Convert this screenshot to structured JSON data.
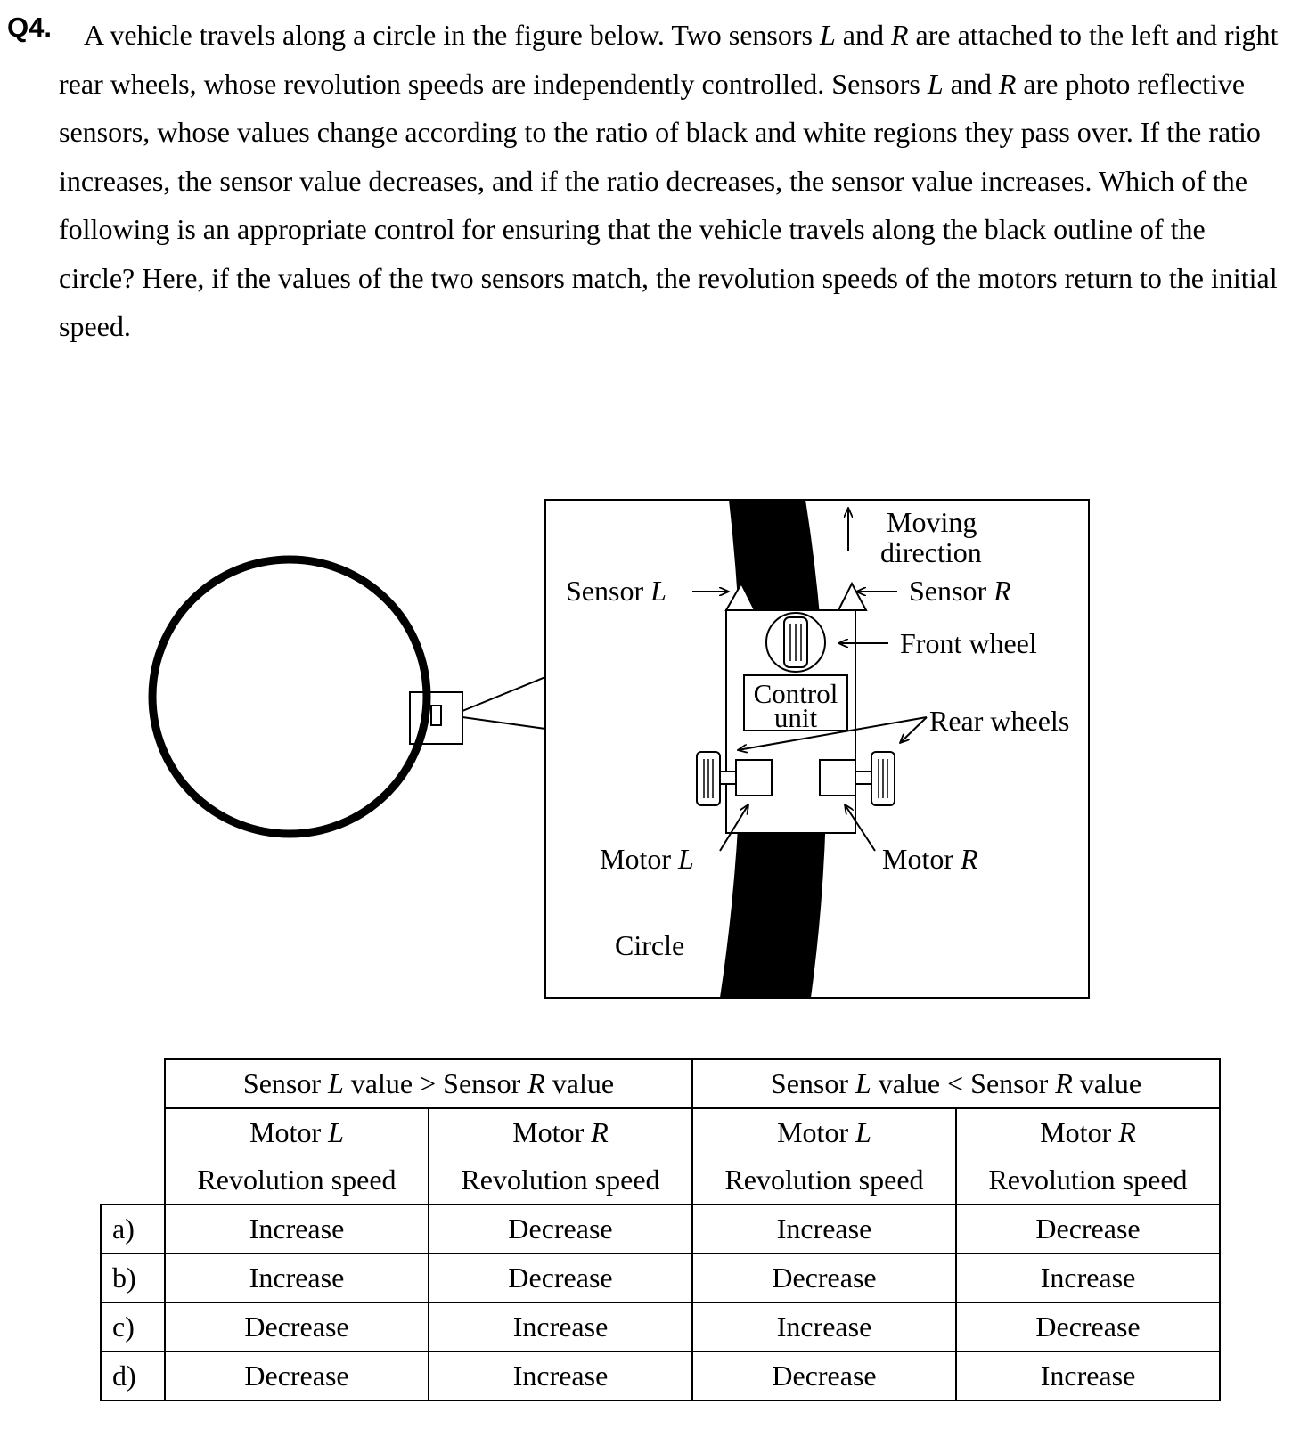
{
  "question": {
    "label": "Q4.",
    "sentence1_a": "A vehicle travels along a circle in the figure below. Two sensors ",
    "var_L": "L",
    "and": " and ",
    "var_R": "R",
    "sentence1_b": " are attached to the left and right rear wheels, whose revolution speeds are independently controlled. Sensors ",
    "sentence2_b": " are photo reflective sensors, whose values change according to the ratio of black and white regions they pass over. If the ratio increases, the sensor value decreases, and if the ratio decreases, the sensor value increases. Which of the following is an appropriate control for ensuring that the vehicle travels along the black outline of the circle? Here, if the values of the two sensors match, the revolution speeds of the motors return to the initial speed."
  },
  "figure": {
    "sensor_l_label": "Sensor ",
    "sensor_l_var": "L",
    "sensor_r_label": "Sensor ",
    "sensor_r_var": "R",
    "moving_line1": "Moving",
    "moving_line2": "direction",
    "front_wheel": "Front wheel",
    "control_line1": "Control",
    "control_line2": "unit",
    "rear_wheels": "Rear wheels",
    "motor_l_label": "Motor ",
    "motor_l_var": "L",
    "motor_r_label": "Motor ",
    "motor_r_var": "R",
    "circle_label": "Circle"
  },
  "table": {
    "group1": {
      "pre": "Sensor ",
      "v1": "L",
      "mid": " value > Sensor ",
      "v2": "R",
      "post": " value"
    },
    "group2": {
      "pre": "Sensor ",
      "v1": "L",
      "mid": " value < Sensor ",
      "v2": "R",
      "post": " value"
    },
    "subheaders": [
      {
        "motor": "Motor ",
        "var": "L",
        "line2": "Revolution speed"
      },
      {
        "motor": "Motor ",
        "var": "R",
        "line2": "Revolution speed"
      },
      {
        "motor": "Motor ",
        "var": "L",
        "line2": "Revolution speed"
      },
      {
        "motor": "Motor ",
        "var": "R",
        "line2": "Revolution speed"
      }
    ],
    "rows": [
      {
        "option": "a)",
        "cells": [
          "Increase",
          "Decrease",
          "Increase",
          "Decrease"
        ]
      },
      {
        "option": "b)",
        "cells": [
          "Increase",
          "Decrease",
          "Decrease",
          "Increase"
        ]
      },
      {
        "option": "c)",
        "cells": [
          "Decrease",
          "Increase",
          "Increase",
          "Decrease"
        ]
      },
      {
        "option": "d)",
        "cells": [
          "Decrease",
          "Increase",
          "Decrease",
          "Increase"
        ]
      }
    ]
  }
}
